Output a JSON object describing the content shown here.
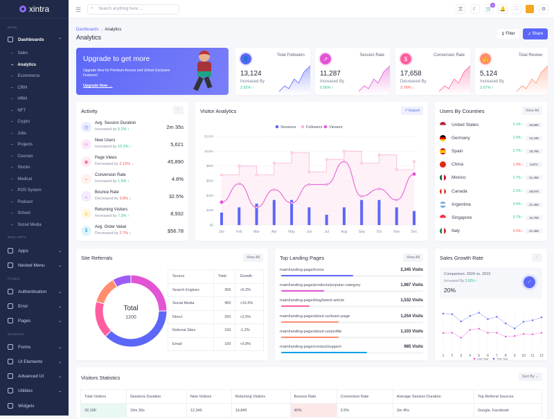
{
  "app": {
    "name": "xintra"
  },
  "sidebar": {
    "sections": [
      "MAIN",
      "WEB APPS",
      "PAGES",
      "GENERAL"
    ],
    "dashboards": "Dashboards",
    "subitems": [
      "Sales",
      "Analytics",
      "Ecommerce",
      "CRM",
      "HRM",
      "NFT",
      "Crypto",
      "Jobs",
      "Projects",
      "Courses",
      "Stocks",
      "Medical",
      "POS System",
      "Podcast",
      "School",
      "Social Media"
    ],
    "active": "Analytics",
    "web_apps": [
      "Apps",
      "Nested Menu"
    ],
    "pages": [
      "Authentication",
      "Error",
      "Pages"
    ],
    "general": [
      "Forms",
      "UI Elements",
      "Advanced UI",
      "Utilities",
      "Widgets"
    ]
  },
  "header": {
    "search_placeholder": "Search anything here ...",
    "cart_count": "5"
  },
  "page": {
    "breadcrumb": [
      "Dashboards",
      "Analytics"
    ],
    "title": "Analytics",
    "filter": "Filter",
    "share": "Share"
  },
  "banner": {
    "title": "Upgrade to get more",
    "text": "Upgrade Now for Premium Access and Unlock Exclusive Features!",
    "link": "Upgrade Now →"
  },
  "stats": [
    {
      "label": "Total Followers",
      "value": "13,124",
      "sub": "Increased By",
      "pct": "2.62% ↑",
      "trend": "up",
      "color": "#5c67f7",
      "icon": "users"
    },
    {
      "label": "Session Rate",
      "value": "11,287",
      "sub": "Increased By",
      "pct": "0.56% ↑",
      "trend": "up",
      "color": "#e354d4",
      "icon": "trending-up"
    },
    {
      "label": "Conversion Rate",
      "value": "17,658",
      "sub": "Decreased By",
      "pct": "3.76% ↓",
      "trend": "down",
      "color": "#ff5d9f",
      "icon": "dollar"
    },
    {
      "label": "Total Review",
      "value": "5,124",
      "sub": "Increased By",
      "pct": "2.57% ↑",
      "trend": "up",
      "color": "#ff8e6f",
      "icon": "thumbs-up"
    }
  ],
  "activity": {
    "title": "Activity",
    "items": [
      {
        "title": "Avg. Session Duration",
        "sub": "Increased by",
        "pct": "5.2% ↑",
        "trend": "up",
        "value": "2m 35s",
        "color": "#5c67f7"
      },
      {
        "title": "New Users",
        "sub": "Increased by",
        "pct": "10.3% ↑",
        "trend": "up",
        "value": "5,621",
        "color": "#e354d4"
      },
      {
        "title": "Page Views",
        "sub": "Decreased by",
        "pct": "2.15% ↓",
        "trend": "down",
        "value": "45,890",
        "color": "#ff5d9f"
      },
      {
        "title": "Conversion Rate",
        "sub": "Increased by",
        "pct": "1.5% ↑",
        "trend": "up",
        "value": "4.8%",
        "color": "#ff8e6f"
      },
      {
        "title": "Bounce Rate",
        "sub": "Decreased by",
        "pct": "3.8% ↓",
        "trend": "down",
        "value": "32.5%",
        "color": "#9e5cf7"
      },
      {
        "title": "Returning Visitors",
        "sub": "Increased by",
        "pct": "7.2% ↑",
        "trend": "up",
        "value": "8,932",
        "color": "#ffc102"
      },
      {
        "title": "Avg. Order Value",
        "sub": "Decreased by",
        "pct": "2.7% ↓",
        "trend": "down",
        "value": "$56.78",
        "color": "#0ca3e7"
      }
    ]
  },
  "visitor": {
    "title": "Visitor Analytics",
    "export": "Export"
  },
  "chart_data": [
    {
      "type": "bar+line",
      "categories": [
        "Jan",
        "Feb",
        "Mar",
        "Apr",
        "May",
        "Jun",
        "Jul",
        "Aug",
        "Sep",
        "Oct",
        "Nov",
        "Dec"
      ],
      "yticks": [
        "$0",
        "$200",
        "$400",
        "$600",
        "$800",
        "$1000",
        "$1200"
      ],
      "ylim": [
        0,
        1200
      ],
      "legend": "top",
      "grid": true,
      "series": [
        {
          "name": "Sessions",
          "type": "bar",
          "color": "#5c67f7",
          "values": [
            170,
            240,
            290,
            340,
            340,
            240,
            140,
            240,
            340,
            340,
            240,
            190
          ]
        },
        {
          "name": "Followers",
          "type": "stepline",
          "color": "#f9b6d8",
          "values": [
            680,
            800,
            680,
            840,
            980,
            720,
            890,
            1000,
            840,
            950,
            750,
            860
          ]
        },
        {
          "name": "Viewers",
          "type": "line",
          "color": "#e354d4",
          "values": [
            310,
            560,
            240,
            480,
            300,
            550,
            550,
            860,
            390,
            490,
            340,
            690
          ]
        }
      ]
    },
    {
      "type": "pie",
      "title": "Total",
      "center_value": "1200",
      "categories": [
        "Search Engines",
        "Social Media",
        "Direct",
        "Referral Sites",
        "Email"
      ],
      "values": [
        300,
        450,
        200,
        150,
        100
      ],
      "colors": [
        "#e354d4",
        "#5c67f7",
        "#ff5d9f",
        "#ff8e6f",
        "#9e5cf7"
      ]
    },
    {
      "type": "line",
      "categories": [
        "1",
        "2",
        "3",
        "4",
        "5",
        "6",
        "7",
        "8",
        "9",
        "10",
        "11",
        "12"
      ],
      "legend": "bottom",
      "series": [
        {
          "name": "Last Year",
          "color": "#e354d4",
          "values": [
            62,
            63,
            46,
            73,
            77,
            63,
            63,
            50,
            52,
            59,
            58,
            63
          ]
        },
        {
          "name": "This Year",
          "color": "#5c67f7",
          "values": [
            129,
            127,
            102,
            121,
            132,
            110,
            118,
            95,
            78,
            101,
            106,
            116
          ]
        }
      ]
    }
  ],
  "countries": {
    "title": "Users By Countries",
    "view_all": "View All",
    "items": [
      {
        "name": "United States",
        "pct": "5.1% ↑",
        "trend": "up",
        "count": "26,890",
        "flag": "us"
      },
      {
        "name": "Germany",
        "pct": "1.3% ↑",
        "trend": "up",
        "count": "12,345",
        "flag": "de"
      },
      {
        "name": "Spain",
        "pct": "2.7% ↑",
        "trend": "up",
        "count": "18,765",
        "flag": "es"
      },
      {
        "name": "China",
        "pct": "1.0% ↓",
        "trend": "down",
        "count": "9,874",
        "flag": "cn"
      },
      {
        "name": "Mexico",
        "pct": "2.7% ↑",
        "trend": "up",
        "count": "21,456",
        "flag": "mx"
      },
      {
        "name": "Canada",
        "pct": "2.1% ↑",
        "trend": "up",
        "count": "28,976",
        "flag": "ca"
      },
      {
        "name": "Argentina",
        "pct": "5.4% ↑",
        "trend": "up",
        "count": "21,456",
        "flag": "ar"
      },
      {
        "name": "Singapore",
        "pct": "0.7% ↑",
        "trend": "up",
        "count": "16,789",
        "flag": "sg"
      },
      {
        "name": "Italy",
        "pct": "0.3% ↓",
        "trend": "down",
        "count": "21,456",
        "flag": "it"
      }
    ]
  },
  "referrals": {
    "title": "Site Referrals",
    "view_all": "View All",
    "headers": [
      "Source",
      "Total",
      "Growth"
    ],
    "rows": [
      [
        "Search Engines",
        "300",
        "+5.2%"
      ],
      [
        "Social Media",
        "450",
        "+10.3%"
      ],
      [
        "Direct",
        "200",
        "+2.5%"
      ],
      [
        "Referral Sites",
        "150",
        "-1.2%"
      ],
      [
        "Email",
        "100",
        "+3.8%"
      ]
    ]
  },
  "landing": {
    "title": "Top Landing Pages",
    "view_all": "View All",
    "items": [
      {
        "path": "main/landing-page/home",
        "visits": "2,345 Visits",
        "fill": 50,
        "color": "#5c67f7"
      },
      {
        "path": "main/landing-page/products/popular-category",
        "visits": "1,987 Visits",
        "fill": 30,
        "color": "#e354d4"
      },
      {
        "path": "main/landing-page/blog/latest-article",
        "visits": "1,532 Visits",
        "fill": 20,
        "color": "#ff5d9f"
      },
      {
        "path": "main/landing-page/about-us/team-page",
        "visits": "1,254 Visits",
        "fill": 40,
        "color": "#ff8e6f"
      },
      {
        "path": "main/landing-page/about-us/profile",
        "visits": "1,103 Visits",
        "fill": 40,
        "color": "#ff8e6f"
      },
      {
        "path": "main/landing-page/contact/support",
        "visits": "985 Visits",
        "fill": 60,
        "color": "#0ca3e7"
      }
    ]
  },
  "sales": {
    "title": "Sales Growth Rate",
    "comparison": "Comparison: 2024 vs. 2023",
    "sub": "Increased By",
    "pct": "2.62% ↑",
    "value": "20%"
  },
  "visitors_stats": {
    "title": "Visitors Statistics",
    "sort": "Sort By",
    "headers": [
      "Total Visitors",
      "Sessions Duration",
      "New Visitors",
      "Returning Visitors",
      "Bounce Rate",
      "Conversion Rate",
      "Average Session Duration",
      "Top Referral Sources"
    ],
    "row": [
      "32,190",
      "15m 30s",
      "12,345",
      "19,845",
      "45%",
      "3.5%",
      "3m 45s",
      "Google, Facebook"
    ]
  }
}
